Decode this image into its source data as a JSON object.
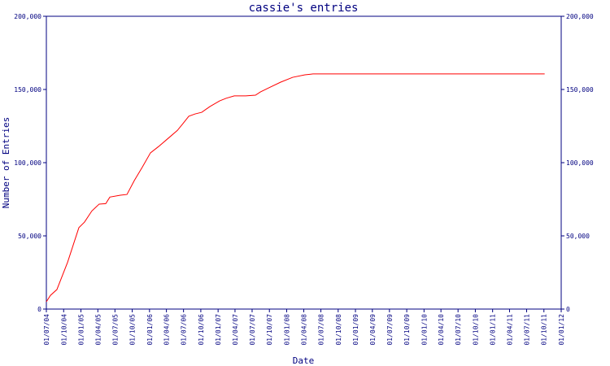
{
  "chart_data": {
    "type": "line",
    "title": "cassie's entries",
    "xlabel": "Date",
    "ylabel": "Number of Entries",
    "x": [
      "2004-07-01",
      "2004-07-23",
      "2004-08-26",
      "2004-10-22",
      "2004-12-21",
      "2005-01-20",
      "2005-02-28",
      "2005-04-08",
      "2005-05-13",
      "2005-06-04",
      "2005-07-30",
      "2005-09-03",
      "2005-10-12",
      "2005-11-24",
      "2006-01-06",
      "2006-02-18",
      "2006-04-11",
      "2006-05-29",
      "2006-06-28",
      "2006-07-29",
      "2006-09-01",
      "2006-10-06",
      "2006-11-18",
      "2007-01-09",
      "2007-02-13",
      "2007-03-28",
      "2007-05-28",
      "2007-07-19",
      "2007-08-14",
      "2007-09-26",
      "2007-11-30",
      "2008-02-02",
      "2008-04-07",
      "2008-05-20",
      "2011-10-05"
    ],
    "series": [
      {
        "name": "entries",
        "color": "#ff0000",
        "values": [
          5000,
          9400,
          13300,
          32000,
          55600,
          59400,
          67000,
          71700,
          72000,
          76500,
          77800,
          78300,
          87800,
          97000,
          106700,
          111000,
          116700,
          122000,
          126700,
          131700,
          133300,
          134400,
          138300,
          142200,
          144000,
          145600,
          145600,
          146100,
          148300,
          151000,
          155000,
          158300,
          160000,
          160600,
          160600
        ]
      }
    ],
    "xlim": [
      "2004-07-01",
      "2012-01-01"
    ],
    "xticks": [
      {
        "value": "2004-07-01",
        "label": "01/07/04"
      },
      {
        "value": "2004-10-01",
        "label": "01/10/04"
      },
      {
        "value": "2005-01-01",
        "label": "01/01/05"
      },
      {
        "value": "2005-04-01",
        "label": "01/04/05"
      },
      {
        "value": "2005-07-01",
        "label": "01/07/05"
      },
      {
        "value": "2005-10-01",
        "label": "01/10/05"
      },
      {
        "value": "2006-01-01",
        "label": "01/01/06"
      },
      {
        "value": "2006-04-01",
        "label": "01/04/06"
      },
      {
        "value": "2006-07-01",
        "label": "01/07/06"
      },
      {
        "value": "2006-10-01",
        "label": "01/10/06"
      },
      {
        "value": "2007-01-01",
        "label": "01/01/07"
      },
      {
        "value": "2007-04-01",
        "label": "01/04/07"
      },
      {
        "value": "2007-07-01",
        "label": "01/07/07"
      },
      {
        "value": "2007-10-01",
        "label": "01/10/07"
      },
      {
        "value": "2008-01-01",
        "label": "01/01/08"
      },
      {
        "value": "2008-04-01",
        "label": "01/04/08"
      },
      {
        "value": "2008-07-01",
        "label": "01/07/08"
      },
      {
        "value": "2008-10-01",
        "label": "01/10/08"
      },
      {
        "value": "2009-01-01",
        "label": "01/01/09"
      },
      {
        "value": "2009-04-01",
        "label": "01/04/09"
      },
      {
        "value": "2009-07-01",
        "label": "01/07/09"
      },
      {
        "value": "2009-10-01",
        "label": "01/10/09"
      },
      {
        "value": "2010-01-01",
        "label": "01/01/10"
      },
      {
        "value": "2010-04-01",
        "label": "01/04/10"
      },
      {
        "value": "2010-07-01",
        "label": "01/07/10"
      },
      {
        "value": "2010-10-01",
        "label": "01/10/10"
      },
      {
        "value": "2011-01-01",
        "label": "01/01/11"
      },
      {
        "value": "2011-04-01",
        "label": "01/04/11"
      },
      {
        "value": "2011-07-01",
        "label": "01/07/11"
      },
      {
        "value": "2011-10-01",
        "label": "01/10/11"
      },
      {
        "value": "2012-01-01",
        "label": "01/01/12"
      }
    ],
    "ylim": [
      0,
      200000
    ],
    "yticks": [
      0,
      {
        "value": 50000,
        "label": "50,000"
      },
      {
        "value": 100000,
        "label": "100,000"
      },
      {
        "value": 150000,
        "label": "150,000"
      },
      {
        "value": 200000,
        "label": "200,000"
      }
    ],
    "y2lim": [
      0,
      200000
    ],
    "y2ticks": [
      0,
      {
        "value": 50000,
        "label": "50,000"
      },
      {
        "value": 100000,
        "label": "100,000"
      },
      {
        "value": 150000,
        "label": "150,000"
      },
      {
        "value": 200000,
        "label": "200,000"
      }
    ]
  }
}
